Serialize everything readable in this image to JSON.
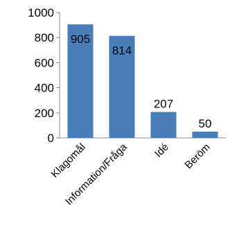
{
  "chart_data": {
    "type": "bar",
    "categories": [
      "Klagomål",
      "Information/Fråga",
      "Idé",
      "Beröm"
    ],
    "values": [
      905,
      814,
      207,
      50
    ],
    "data_labels": [
      "905",
      "814",
      "207",
      "50"
    ],
    "yticks": [
      "0",
      "200",
      "400",
      "600",
      "800",
      "1000"
    ],
    "ylim": [
      0,
      1000
    ],
    "grid": false,
    "legend": "none",
    "bar_color": "#4a7ebb"
  }
}
